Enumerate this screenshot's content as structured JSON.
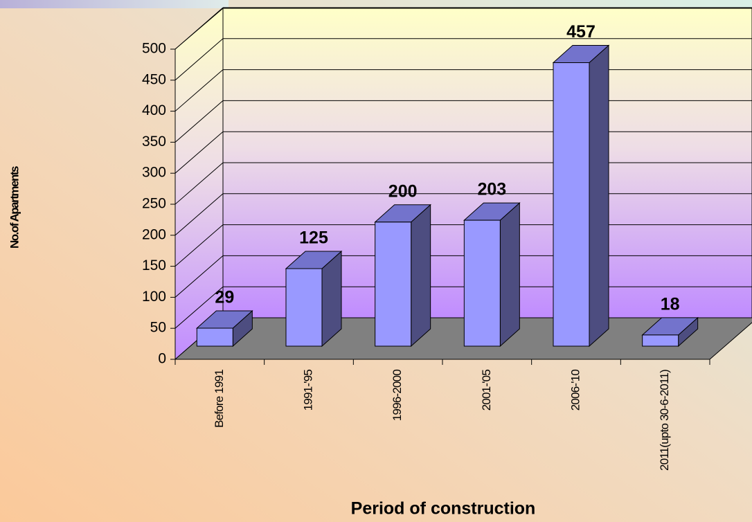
{
  "chart_data": {
    "type": "bar3d",
    "x_label": "Period of construction",
    "y_label": "No.of Apartments",
    "categories": [
      "Before 1991",
      "1991-'95",
      "1996-2000",
      "2001-'05",
      "2006-'10",
      "2011(upto 30-6-2011)"
    ],
    "values": [
      29,
      125,
      200,
      203,
      457,
      18
    ],
    "color": "#9999ff",
    "ylim": [
      0,
      500
    ],
    "yticks": [
      0,
      50,
      100,
      150,
      200,
      250,
      300,
      350,
      400,
      450,
      500
    ],
    "grid": true
  }
}
